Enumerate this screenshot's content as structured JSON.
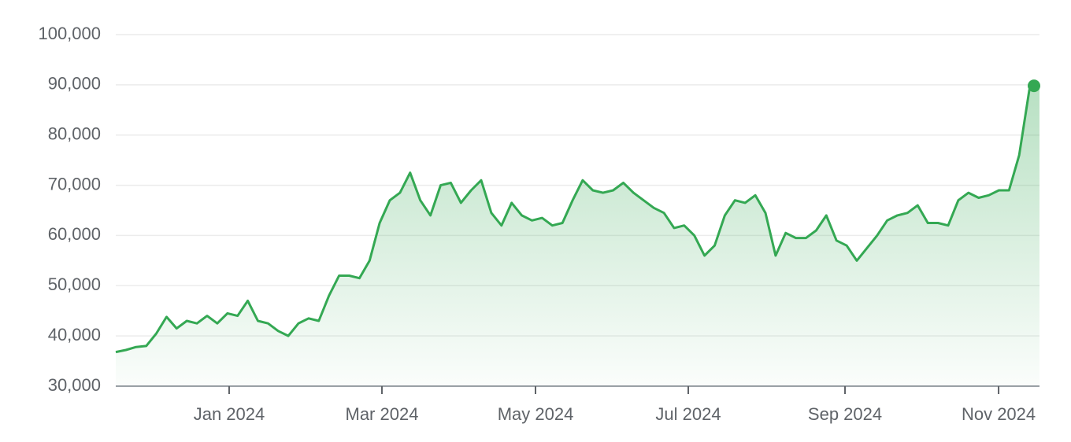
{
  "chart_data": {
    "type": "line",
    "series": [
      {
        "color": "#34a853",
        "values": [
          36.8,
          37.2,
          37.8,
          38.0,
          40.5,
          43.8,
          41.5,
          43.0,
          42.5,
          44.0,
          42.5,
          44.5,
          44.0,
          47.0,
          43.0,
          42.5,
          41.0,
          40.0,
          42.5,
          43.5,
          43.0,
          48.0,
          52.0,
          52.0,
          51.5,
          55.0,
          62.5,
          67.0,
          68.5,
          72.5,
          67.0,
          64.0,
          70.0,
          70.5,
          66.5,
          69.0,
          71.0,
          64.5,
          62.0,
          66.5,
          64.0,
          63.0,
          63.5,
          62.0,
          62.5,
          67.0,
          71.0,
          69.0,
          68.5,
          69.0,
          70.5,
          68.5,
          67.0,
          65.5,
          64.5,
          61.5,
          62.0,
          60.0,
          56.0,
          58.0,
          64.0,
          67.0,
          66.5,
          68.0,
          64.5,
          56.0,
          60.5,
          59.5,
          59.5,
          61.0,
          64.0,
          59.0,
          58.0,
          55.0,
          57.5,
          60.0,
          63.0,
          64.0,
          64.5,
          66.0,
          62.5,
          62.5,
          62.0,
          67.0,
          68.5,
          67.5,
          68.0,
          69.0,
          69.0,
          76.0,
          89.0,
          89.8
        ]
      }
    ],
    "xlim": [
      0,
      91
    ],
    "xticks": [
      {
        "value": 11.17,
        "label": "Jan 2024"
      },
      {
        "value": 26.22,
        "label": "Mar 2024"
      },
      {
        "value": 41.35,
        "label": "May 2024"
      },
      {
        "value": 56.4,
        "label": "Jul 2024"
      },
      {
        "value": 71.84,
        "label": "Sep 2024"
      },
      {
        "value": 86.97,
        "label": "Nov 2024"
      }
    ],
    "ylim": [
      30,
      100
    ],
    "yticks": [
      {
        "value": 30,
        "label": "30,000"
      },
      {
        "value": 40,
        "label": "40,000"
      },
      {
        "value": 50,
        "label": "50,000"
      },
      {
        "value": 60,
        "label": "60,000"
      },
      {
        "value": 70,
        "label": "70,000"
      },
      {
        "value": 80,
        "label": "80,000"
      },
      {
        "value": 90,
        "label": "90,000"
      },
      {
        "value": 100,
        "label": "100,000"
      }
    ],
    "grid": true
  }
}
